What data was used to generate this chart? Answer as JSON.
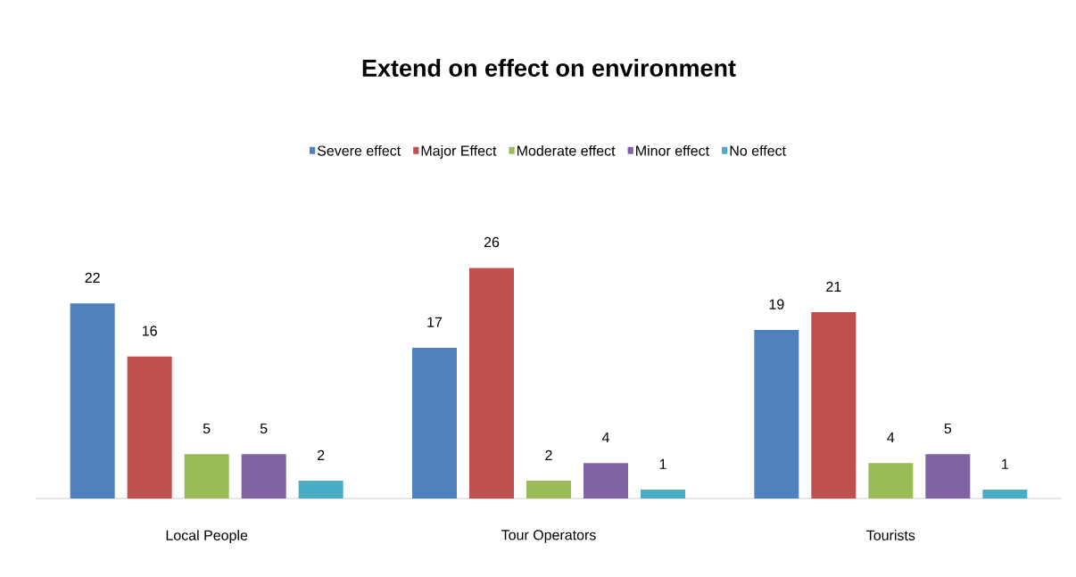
{
  "chart_data": {
    "type": "bar",
    "title": "Extend on effect on environment",
    "categories": [
      "Local People",
      "Tour Operators",
      "Tourists"
    ],
    "series": [
      {
        "name": "Severe effect",
        "color": "#4f81bd",
        "values": [
          22,
          17,
          19
        ]
      },
      {
        "name": "Major Effect",
        "color": "#c0504d",
        "values": [
          16,
          26,
          21
        ]
      },
      {
        "name": "Moderate effect",
        "color": "#9bbb59",
        "values": [
          5,
          2,
          4
        ]
      },
      {
        "name": "Minor effect",
        "color": "#8064a2",
        "values": [
          5,
          4,
          5
        ]
      },
      {
        "name": "No effect",
        "color": "#4bacc6",
        "values": [
          2,
          1,
          1
        ]
      }
    ],
    "data_labels": true,
    "legend": "top"
  }
}
